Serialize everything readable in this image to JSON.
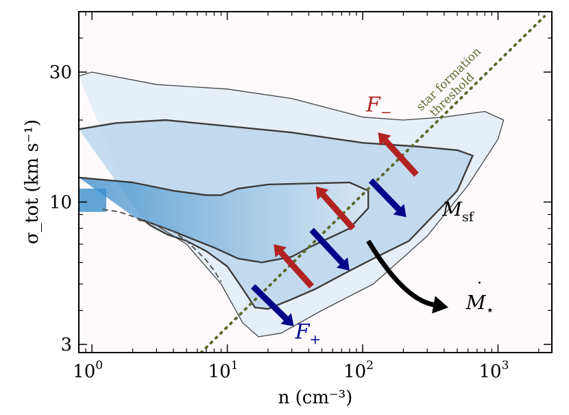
{
  "chart_data": {
    "type": "heatmap",
    "title": "",
    "xlabel": "n (cm⁻³)",
    "ylabel": "σ_tot (km s⁻¹)",
    "x_scale": "log",
    "y_scale": "log",
    "xlim": [
      0.8,
      2500
    ],
    "ylim": [
      2.8,
      50
    ],
    "x_ticks": [
      {
        "value": 1,
        "label": "10",
        "exp": "0"
      },
      {
        "value": 10,
        "label": "10",
        "exp": "1"
      },
      {
        "value": 100,
        "label": "10",
        "exp": "2"
      },
      {
        "value": 1000,
        "label": "10",
        "exp": "3"
      }
    ],
    "y_ticks": [
      {
        "value": 3,
        "label": "3"
      },
      {
        "value": 10,
        "label": "10"
      },
      {
        "value": 30,
        "label": "30"
      }
    ],
    "threshold_line": {
      "label_line1": "star formation",
      "label_line2": "threshold",
      "x1": 6.4,
      "y1": 2.8,
      "x2": 2200,
      "y2": 48,
      "color": "#5b6b2e"
    },
    "contours": [
      {
        "name": "outer",
        "points": [
          [
            0.8,
            29
          ],
          [
            1.0,
            30
          ],
          [
            3,
            27
          ],
          [
            10,
            26
          ],
          [
            30,
            24
          ],
          [
            100,
            20.5
          ],
          [
            200,
            20
          ],
          [
            400,
            20.5
          ],
          [
            800,
            21.5
          ],
          [
            1100,
            20
          ],
          [
            1000,
            17
          ],
          [
            600,
            11.5
          ],
          [
            300,
            7.5
          ],
          [
            120,
            5
          ],
          [
            50,
            4
          ],
          [
            25,
            3.3
          ],
          [
            17,
            3.2
          ],
          [
            13,
            3.6
          ],
          [
            9,
            5
          ],
          [
            6,
            6.3
          ],
          [
            5,
            7
          ],
          [
            3,
            8.2
          ],
          [
            2.2,
            8.7
          ]
        ]
      },
      {
        "name": "middle",
        "points": [
          [
            0.8,
            18.5
          ],
          [
            1.5,
            19.5
          ],
          [
            3.5,
            20
          ],
          [
            10,
            19
          ],
          [
            30,
            18
          ],
          [
            100,
            16.5
          ],
          [
            250,
            16
          ],
          [
            500,
            15.5
          ],
          [
            650,
            14.8
          ],
          [
            500,
            11
          ],
          [
            220,
            7.2
          ],
          [
            120,
            6.2
          ],
          [
            70,
            5.4
          ],
          [
            45,
            4.8
          ],
          [
            30,
            4.4
          ],
          [
            20,
            4.05
          ],
          [
            16,
            4.1
          ],
          [
            13,
            4.8
          ],
          [
            10,
            5.8
          ],
          [
            7,
            6.6
          ],
          [
            5,
            7.2
          ],
          [
            3.6,
            7.6
          ],
          [
            2.7,
            8.2
          ],
          [
            2.4,
            8.6
          ]
        ]
      },
      {
        "name": "inner",
        "points": [
          [
            0.8,
            12.3
          ],
          [
            2,
            11.8
          ],
          [
            4,
            11
          ],
          [
            7,
            10.6
          ],
          [
            9,
            10.6
          ],
          [
            12,
            11.2
          ],
          [
            20,
            11.6
          ],
          [
            40,
            11.7
          ],
          [
            80,
            11.8
          ],
          [
            110,
            11
          ],
          [
            110,
            9.5
          ],
          [
            80,
            8
          ],
          [
            40,
            6.8
          ],
          [
            30,
            6.3
          ],
          [
            18,
            6
          ],
          [
            12,
            6.2
          ],
          [
            8,
            6.8
          ],
          [
            6,
            7.2
          ],
          [
            4,
            7.8
          ],
          [
            2.5,
            8.5
          ],
          [
            2.2,
            8.6
          ]
        ]
      }
    ],
    "dashed_segment": [
      [
        1.2,
        9.4
      ],
      [
        1.6,
        9.2
      ],
      [
        2.2,
        8.7
      ],
      [
        3,
        8.2
      ],
      [
        4,
        7.8
      ],
      [
        5,
        7.2
      ],
      [
        6,
        6.6
      ],
      [
        7,
        6.1
      ],
      [
        8,
        5.6
      ],
      [
        9,
        5.1
      ]
    ],
    "arrows": [
      {
        "name": "F-",
        "color": "#b22222",
        "from": [
          250,
          12.6
        ],
        "to": [
          130,
          18
        ]
      },
      {
        "name": "F-",
        "color": "#b22222",
        "from": [
          85,
          8.0
        ],
        "to": [
          45,
          11.4
        ]
      },
      {
        "name": "F-",
        "color": "#b22222",
        "from": [
          42,
          4.9
        ],
        "to": [
          22,
          7.0
        ]
      },
      {
        "name": "F+",
        "color": "#00008b",
        "from": [
          115,
          12.0
        ],
        "to": [
          210,
          8.8
        ]
      },
      {
        "name": "F+",
        "color": "#00008b",
        "from": [
          42,
          7.9
        ],
        "to": [
          80,
          5.6
        ]
      },
      {
        "name": "F+",
        "color": "#00008b",
        "from": [
          15.5,
          4.9
        ],
        "to": [
          31,
          3.5
        ]
      }
    ],
    "sf_arrow": {
      "color": "#000000",
      "from": [
        110,
        7.2
      ],
      "control": [
        200,
        4.4
      ],
      "to": [
        430,
        4.1
      ]
    },
    "annotations": {
      "f_minus": {
        "text": "F",
        "sub": "−",
        "x": 100,
        "y": 21.5
      },
      "f_plus": {
        "text": "F",
        "sub": "+",
        "x": 31,
        "y": 3.15
      },
      "m_sf": {
        "text": "M",
        "sub": "sf",
        "x": 280,
        "y": 8.9
      },
      "mdot_star": {
        "text": "M",
        "sub": "⋆",
        "dot": "˙",
        "x": 460,
        "y": 4.05
      }
    },
    "colormap": {
      "low": "#fbeaf2",
      "mid": "#9ec6e4",
      "high": "#1e78c0"
    }
  }
}
